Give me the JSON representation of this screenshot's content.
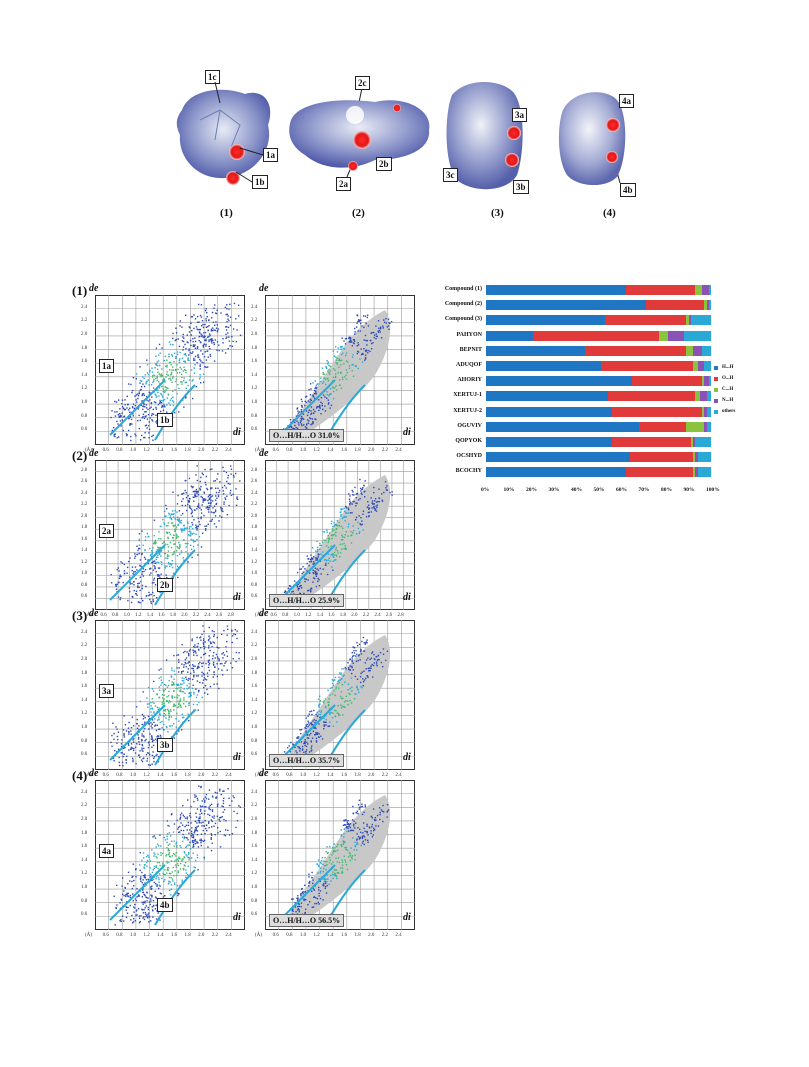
{
  "hirshfeld": {
    "labels": [
      "(1)",
      "(2)",
      "(3)",
      "(4)"
    ],
    "callouts": {
      "c1a": "1a",
      "c1b": "1b",
      "c1c": "1c",
      "c2a": "2a",
      "c2b": "2b",
      "c2c": "2c",
      "c3a": "3a",
      "c3b": "3b",
      "c3c": "3c",
      "c4a": "4a",
      "c4b": "4b"
    }
  },
  "fingerprints": [
    {
      "num": "(1)",
      "yticks": [
        "2.4",
        "2.2",
        "2.0",
        "1.8",
        "1.6",
        "1.4",
        "1.2",
        "1.0",
        "0.8",
        "0.6"
      ],
      "xticks": [
        "0.6",
        "0.8",
        "1.0",
        "1.2",
        "1.4",
        "1.6",
        "1.8",
        "2.0",
        "2.2",
        "2.4"
      ],
      "pointer_a": "1a",
      "pointer_b": "1b",
      "contact": "O…H/H…O   31.0%"
    },
    {
      "num": "(2)",
      "yticks": [
        "2.8",
        "2.6",
        "2.4",
        "2.2",
        "2.0",
        "1.8",
        "1.6",
        "1.4",
        "1.2",
        "1.0",
        "0.8",
        "0.6"
      ],
      "xticks": [
        "0.6",
        "0.8",
        "1.0",
        "1.2",
        "1.4",
        "1.6",
        "1.8",
        "2.0",
        "2.2",
        "2.4",
        "2.6",
        "2.8"
      ],
      "pointer_a": "2a",
      "pointer_b": "2b",
      "contact": "O…H/H…O   25.9%"
    },
    {
      "num": "(3)",
      "yticks": [
        "2.4",
        "2.2",
        "2.0",
        "1.8",
        "1.6",
        "1.4",
        "1.2",
        "1.0",
        "0.8",
        "0.6"
      ],
      "xticks": [
        "0.6",
        "0.8",
        "1.0",
        "1.2",
        "1.4",
        "1.6",
        "1.8",
        "2.0",
        "2.2",
        "2.4"
      ],
      "pointer_a": "3a",
      "pointer_b": "3b",
      "contact": "O…H/H…O   35.7%"
    },
    {
      "num": "(4)",
      "yticks": [
        "2.4",
        "2.2",
        "2.0",
        "1.8",
        "1.6",
        "1.4",
        "1.2",
        "1.0",
        "0.8",
        "0.6"
      ],
      "xticks": [
        "0.6",
        "0.8",
        "1.0",
        "1.2",
        "1.4",
        "1.6",
        "1.8",
        "2.0",
        "2.2",
        "2.4"
      ],
      "pointer_a": "4a",
      "pointer_b": "4b",
      "contact": "O…H/H…O   56.5%"
    }
  ],
  "axis": {
    "de": "de",
    "di": "di",
    "unit": "(Å)"
  },
  "chart_data": {
    "type": "bar",
    "orientation": "horizontal-stacked-percent",
    "categories": [
      "Compound (1)",
      "Compound (2)",
      "Compound (3)",
      "PAHYON",
      "BEPNIT",
      "ADUQOF",
      "AHORIY",
      "XERTUJ-1",
      "XERTUJ-2",
      "OGUVIV",
      "QOPYOK",
      "OCSHYD",
      "BCOCHY"
    ],
    "series": [
      {
        "name": "H...H",
        "color": "#1f77c4",
        "values": [
          62,
          71,
          53,
          21,
          44,
          51,
          65,
          54,
          56,
          68,
          56,
          64,
          62
        ]
      },
      {
        "name": "O...H",
        "color": "#e03a3a",
        "values": [
          31,
          26,
          36,
          56,
          45,
          41,
          31,
          39,
          40,
          21,
          35,
          28,
          30
        ]
      },
      {
        "name": "C...H",
        "color": "#8ac43f",
        "values": [
          3,
          1,
          1,
          4,
          3,
          2,
          1,
          2,
          1,
          8,
          1,
          1,
          1
        ]
      },
      {
        "name": "N...H",
        "color": "#8a52b4",
        "values": [
          3,
          1,
          1,
          7,
          4,
          3,
          2,
          3,
          1,
          1,
          1,
          1,
          1
        ]
      },
      {
        "name": "others",
        "color": "#2aa8d6",
        "values": [
          1,
          1,
          9,
          12,
          4,
          3,
          1,
          2,
          2,
          2,
          7,
          6,
          6
        ]
      }
    ],
    "xticks": [
      "0%",
      "10%",
      "20%",
      "30%",
      "40%",
      "50%",
      "60%",
      "70%",
      "80%",
      "90%",
      "100%"
    ],
    "legend_position": "right"
  }
}
